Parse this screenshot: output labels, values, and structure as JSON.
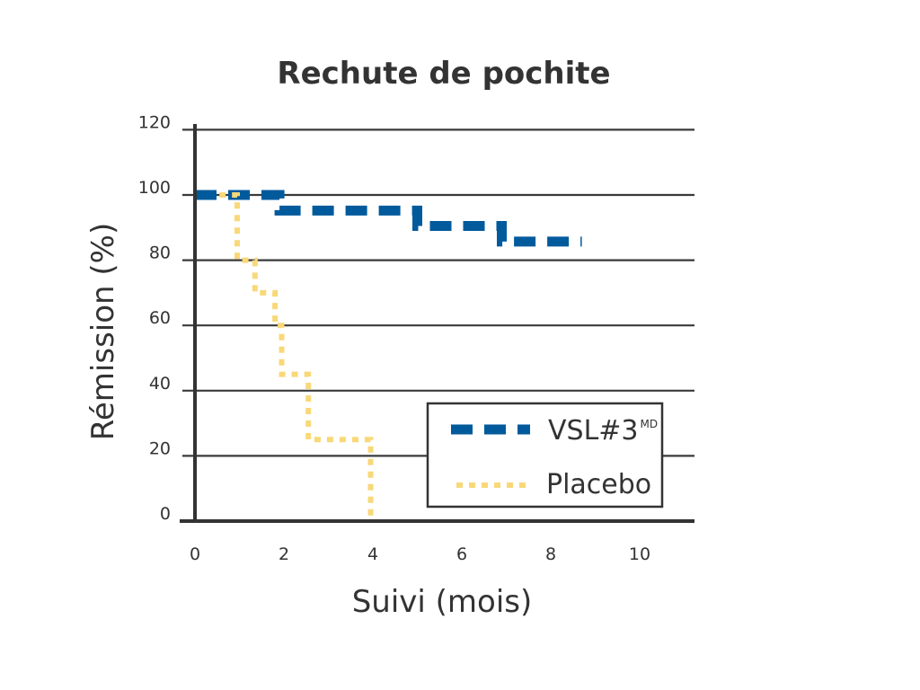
{
  "chart_data": {
    "type": "line",
    "title": "Rechute de pochite",
    "xlabel": "Suivi (mois)",
    "ylabel": "Rémission (%)",
    "xlim": [
      0,
      11
    ],
    "ylim": [
      0,
      120
    ],
    "x_ticks": [
      "0",
      "2",
      "4",
      "6",
      "8",
      "10"
    ],
    "y_ticks": [
      "0",
      "20",
      "40",
      "60",
      "80",
      "100",
      "120"
    ],
    "grid": "horizontal",
    "legend_position": "bottom-right",
    "series": [
      {
        "name": "VSL#3",
        "name_superscript": "MD",
        "color": "#005a9c",
        "style": "dashed",
        "x": [
          0,
          1.9,
          1.9,
          5.0,
          5.0,
          6.9,
          6.9,
          8.7
        ],
        "y": [
          100,
          100,
          95.2,
          95.2,
          90.5,
          90.5,
          85.7,
          85.7
        ]
      },
      {
        "name": "Placebo",
        "color": "#f8d878",
        "style": "dotted",
        "x": [
          0.55,
          0.95,
          0.95,
          1.35,
          1.35,
          1.8,
          1.8,
          1.95,
          1.95,
          2.55,
          2.55,
          3.95,
          3.95
        ],
        "y": [
          100,
          100,
          80,
          80,
          70,
          70,
          60,
          60,
          45,
          45,
          25,
          25,
          0
        ]
      }
    ]
  }
}
